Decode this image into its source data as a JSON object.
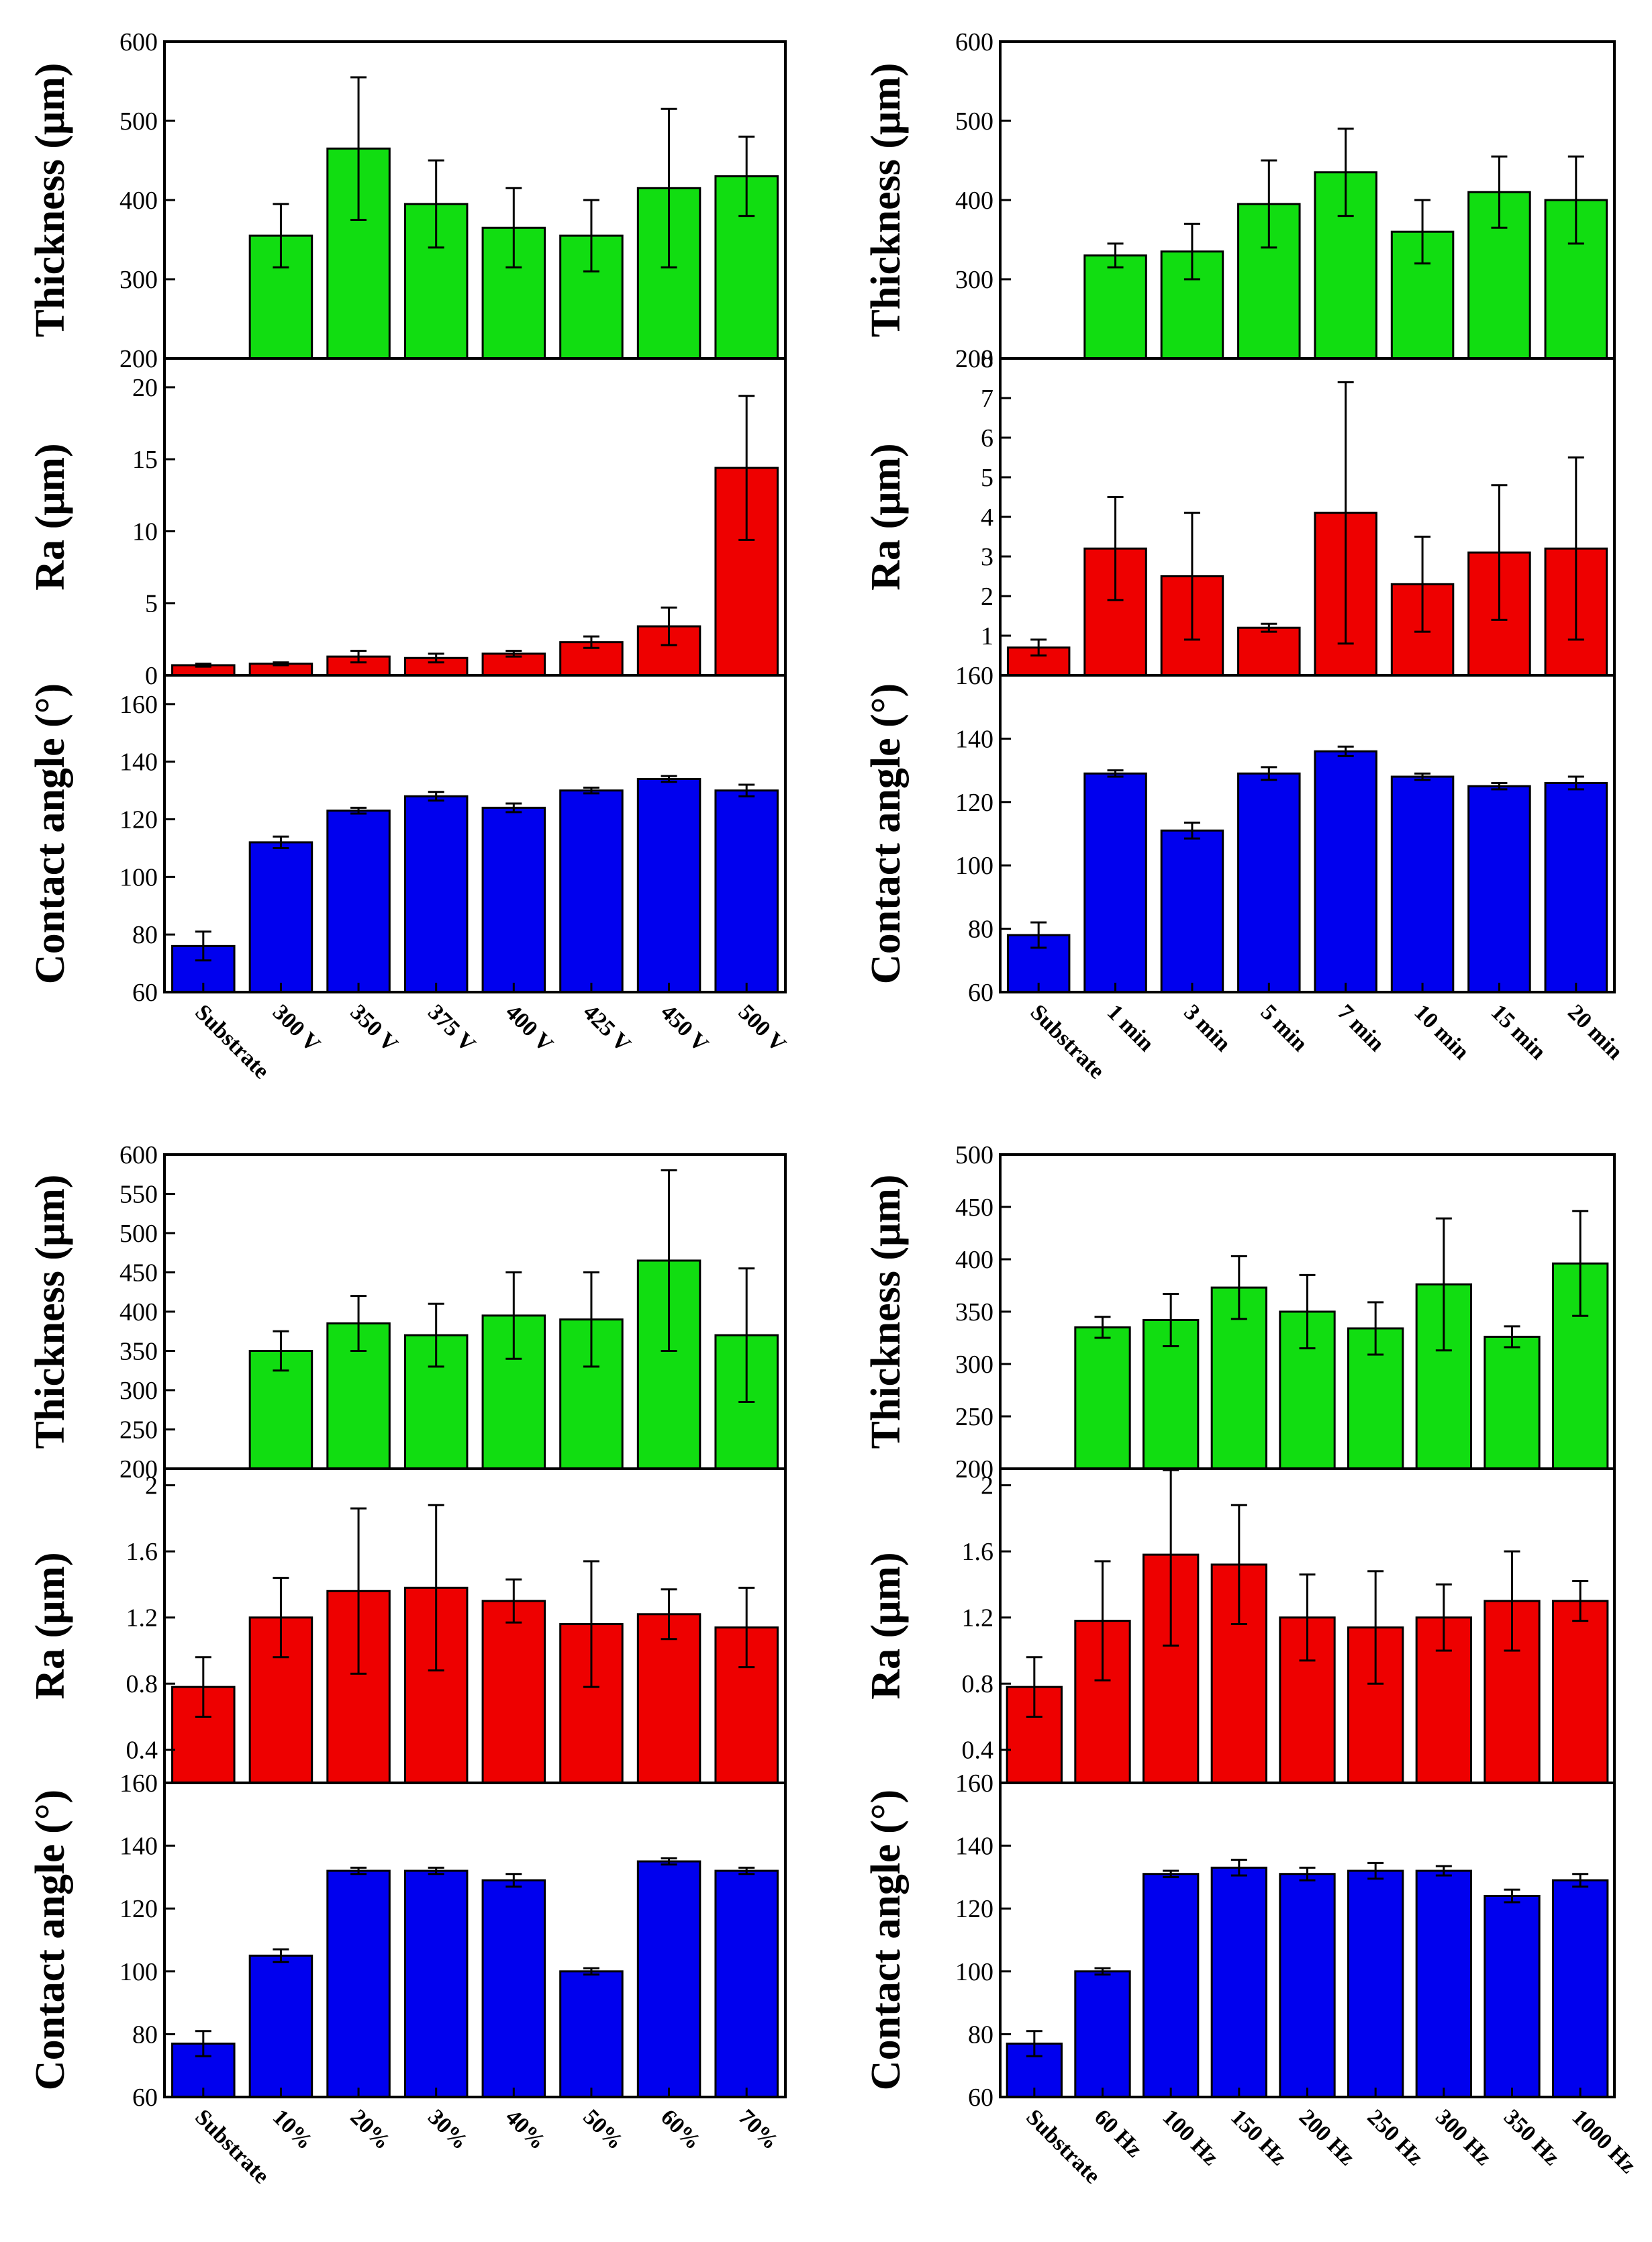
{
  "chart_data": [
    {
      "type": "bar",
      "categories": [
        "Substrate",
        "300 V",
        "350 V",
        "375 V",
        "400 V",
        "425 V",
        "450 V",
        "500 V"
      ],
      "panels": [
        {
          "ylabel": "Thickness (μm)",
          "color": "#11dd11",
          "ylim": [
            200,
            600
          ],
          "ticks": [
            200,
            300,
            400,
            500,
            600
          ],
          "values": [
            null,
            355,
            465,
            395,
            365,
            355,
            415,
            430
          ],
          "errors": [
            null,
            40,
            90,
            55,
            50,
            45,
            100,
            50
          ]
        },
        {
          "ylabel": "Ra (μm)",
          "color": "#ee0000",
          "ylim": [
            0,
            22
          ],
          "ticks": [
            0,
            5,
            10,
            15,
            20
          ],
          "values": [
            0.7,
            0.8,
            1.3,
            1.2,
            1.5,
            2.3,
            3.4,
            14.4
          ],
          "errors": [
            0.1,
            0.1,
            0.4,
            0.3,
            0.2,
            0.4,
            1.3,
            5.0
          ]
        },
        {
          "ylabel": "Contact angle (°)",
          "color": "#0000ee",
          "ylim": [
            60,
            170
          ],
          "ticks": [
            60,
            80,
            100,
            120,
            140,
            160
          ],
          "values": [
            76,
            112,
            123,
            128,
            124,
            130,
            134,
            130
          ],
          "errors": [
            5,
            2,
            1,
            1.5,
            1.5,
            1,
            1,
            2
          ]
        }
      ]
    },
    {
      "type": "bar",
      "categories": [
        "Substrate",
        "1 min",
        "3 min",
        "5 min",
        "7 min",
        "10 min",
        "15 min",
        "20 min"
      ],
      "panels": [
        {
          "ylabel": "Thickness (μm)",
          "color": "#11dd11",
          "ylim": [
            200,
            600
          ],
          "ticks": [
            200,
            300,
            400,
            500,
            600
          ],
          "values": [
            null,
            330,
            335,
            395,
            435,
            360,
            410,
            400
          ],
          "errors": [
            null,
            15,
            35,
            55,
            55,
            40,
            45,
            55
          ]
        },
        {
          "ylabel": "Ra (μm)",
          "color": "#ee0000",
          "ylim": [
            0,
            8
          ],
          "ticks": [
            1,
            2,
            3,
            4,
            5,
            6,
            7,
            8
          ],
          "values": [
            0.7,
            3.2,
            2.5,
            1.2,
            4.1,
            2.3,
            3.1,
            3.2
          ],
          "errors": [
            0.2,
            1.3,
            1.6,
            0.1,
            3.3,
            1.2,
            1.7,
            2.3
          ]
        },
        {
          "ylabel": "Contact angle (°)",
          "color": "#0000ee",
          "ylim": [
            60,
            160
          ],
          "ticks": [
            60,
            80,
            100,
            120,
            140,
            160
          ],
          "values": [
            78,
            129,
            111,
            129,
            136,
            128,
            125,
            126
          ],
          "errors": [
            4,
            1,
            2.5,
            2,
            1.5,
            1,
            1,
            2
          ]
        }
      ]
    },
    {
      "type": "bar",
      "categories": [
        "Substrate",
        "10%",
        "20%",
        "30%",
        "40%",
        "50%",
        "60%",
        "70%"
      ],
      "panels": [
        {
          "ylabel": "Thickness (μm)",
          "color": "#11dd11",
          "ylim": [
            200,
            600
          ],
          "ticks": [
            200,
            250,
            300,
            350,
            400,
            450,
            500,
            550,
            600
          ],
          "values": [
            null,
            350,
            385,
            370,
            395,
            390,
            465,
            370
          ],
          "errors": [
            null,
            25,
            35,
            40,
            55,
            60,
            115,
            85
          ]
        },
        {
          "ylabel": "Ra (μm)",
          "color": "#ee0000",
          "ylim": [
            0.2,
            2.1
          ],
          "ticks": [
            0.4,
            0.8,
            1.2,
            1.6,
            2.0
          ],
          "values": [
            0.78,
            1.2,
            1.36,
            1.38,
            1.3,
            1.16,
            1.22,
            1.14
          ],
          "errors": [
            0.18,
            0.24,
            0.5,
            0.5,
            0.13,
            0.38,
            0.15,
            0.24
          ]
        },
        {
          "ylabel": "Contact angle (°)",
          "color": "#0000ee",
          "ylim": [
            60,
            160
          ],
          "ticks": [
            60,
            80,
            100,
            120,
            140,
            160
          ],
          "values": [
            77,
            105,
            132,
            132,
            129,
            100,
            135,
            132
          ],
          "errors": [
            4,
            2,
            1,
            1,
            2,
            1,
            1,
            1
          ]
        }
      ]
    },
    {
      "type": "bar",
      "categories": [
        "Substrate",
        "60 Hz",
        "100 Hz",
        "150 Hz",
        "200 Hz",
        "250 Hz",
        "300 Hz",
        "350 Hz",
        "1000 Hz"
      ],
      "panels": [
        {
          "ylabel": "Thickness (μm)",
          "color": "#11dd11",
          "ylim": [
            200,
            500
          ],
          "ticks": [
            200,
            250,
            300,
            350,
            400,
            450,
            500
          ],
          "values": [
            null,
            335,
            342,
            373,
            350,
            334,
            376,
            326,
            396
          ],
          "errors": [
            null,
            10,
            25,
            30,
            35,
            25,
            63,
            10,
            50
          ]
        },
        {
          "ylabel": "Ra (μm)",
          "color": "#ee0000",
          "ylim": [
            0.2,
            2.1
          ],
          "ticks": [
            0.4,
            0.8,
            1.2,
            1.6,
            2.0
          ],
          "values": [
            0.78,
            1.18,
            1.58,
            1.52,
            1.2,
            1.14,
            1.2,
            1.3,
            1.3
          ],
          "errors": [
            0.18,
            0.36,
            0.55,
            0.36,
            0.26,
            0.34,
            0.2,
            0.3,
            0.12
          ]
        },
        {
          "ylabel": "Contact angle (°)",
          "color": "#0000ee",
          "ylim": [
            60,
            160
          ],
          "ticks": [
            60,
            80,
            100,
            120,
            140,
            160
          ],
          "values": [
            77,
            100,
            131,
            133,
            131,
            132,
            132,
            124,
            129
          ],
          "errors": [
            4,
            1,
            1,
            2.5,
            2,
            2.5,
            1.5,
            2,
            2
          ]
        }
      ]
    }
  ]
}
